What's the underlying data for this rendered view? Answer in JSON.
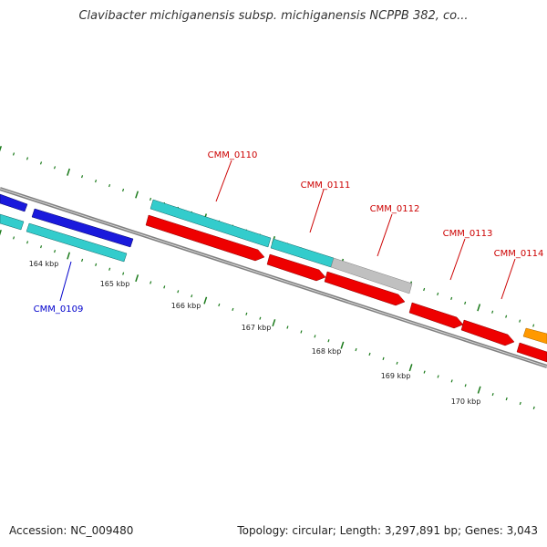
{
  "title": "Clavibacter michiganensis subsp. michiganensis NCPPB 382, co...",
  "footer": {
    "accession": "Accession: NC_009480",
    "topology": "Topology: circular; Length: 3,297,891 bp; Genes: 3,043"
  },
  "ticks": [
    "164 kbp",
    "165 kbp",
    "166 kbp",
    "167 kbp",
    "168 kbp",
    "169 kbp",
    "170 kbp"
  ],
  "gene_labels": [
    {
      "id": "CMM_0109",
      "color": "#0000cc"
    },
    {
      "id": "CMM_0110",
      "color": "#cc0000"
    },
    {
      "id": "CMM_0111",
      "color": "#cc0000"
    },
    {
      "id": "CMM_0112",
      "color": "#cc0000"
    },
    {
      "id": "CMM_0113",
      "color": "#cc0000"
    },
    {
      "id": "CMM_0114",
      "color": "#cc0000"
    }
  ],
  "colors": {
    "backbone": "#808080",
    "tick": "#1a7a1a",
    "blue_feature": "#1a1adc",
    "cyan_feature": "#33cccc",
    "red_feature": "#ee0000",
    "gray_feature": "#c0c0c0",
    "orange_feature": "#ff9900"
  }
}
